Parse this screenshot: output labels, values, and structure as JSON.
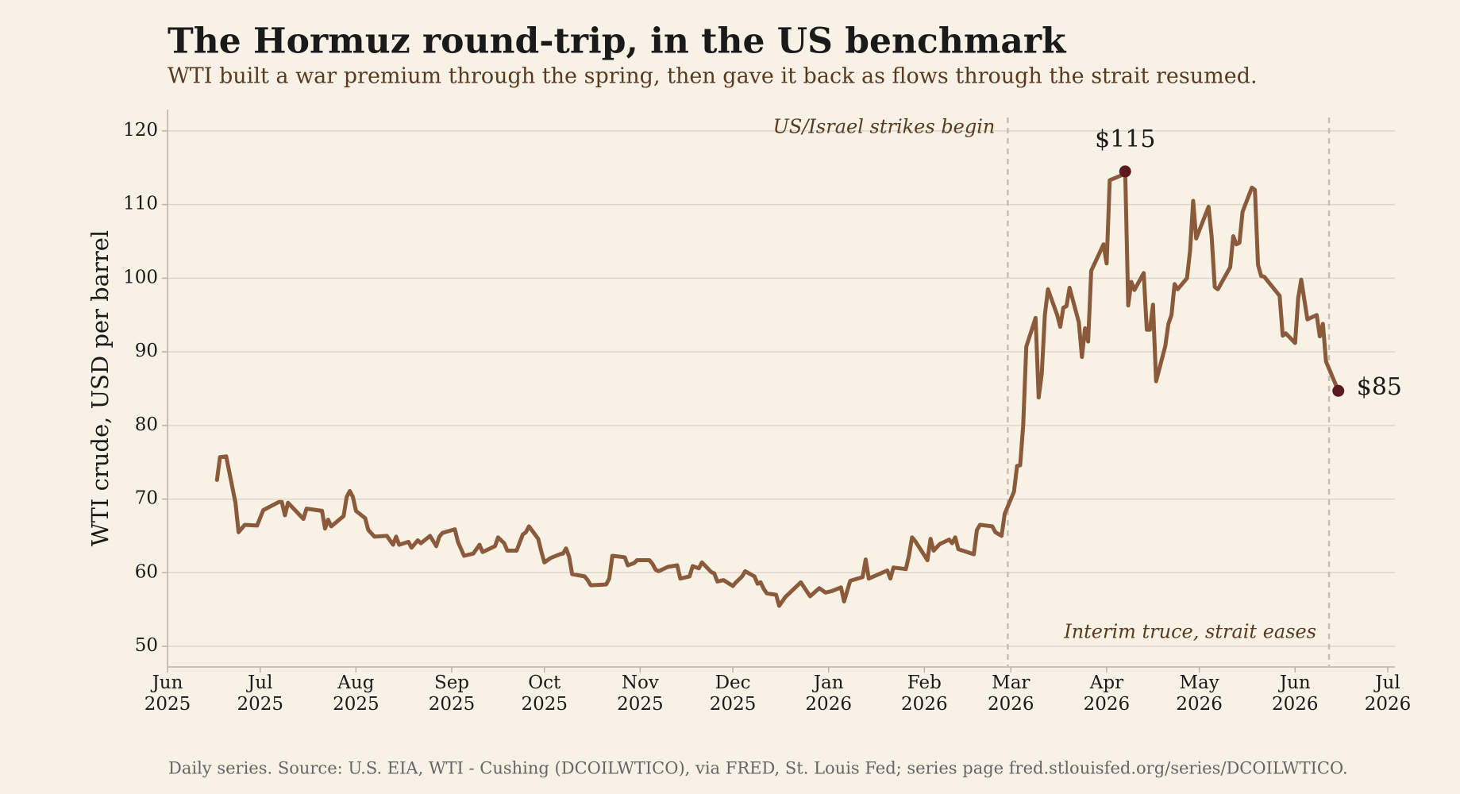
{
  "chart_data": {
    "type": "line",
    "title": "The Hormuz round-trip, in the US benchmark",
    "subtitle": "WTI built a war premium through the spring, then gave it back as flows through the strait resumed.",
    "ylabel": "WTI crude, USD per barrel",
    "footnote": "Daily series. Source: U.S. EIA, WTI - Cushing (DCOILWTICO), via FRED, St. Louis Fed; series page fred.stlouisfed.org/series/DCOILWTICO.",
    "color": "#8a5a3a",
    "grid": true,
    "xlim": [
      "2025-06-01",
      "2026-07-01"
    ],
    "xticks": [
      {
        "value": "2025-06-01",
        "label": "Jun 2025"
      },
      {
        "value": "2025-07-01",
        "label": "Jul 2025"
      },
      {
        "value": "2025-08-01",
        "label": "Aug 2025"
      },
      {
        "value": "2025-09-01",
        "label": "Sep 2025"
      },
      {
        "value": "2025-10-01",
        "label": "Oct 2025"
      },
      {
        "value": "2025-11-01",
        "label": "Nov 2025"
      },
      {
        "value": "2025-12-01",
        "label": "Dec 2025"
      },
      {
        "value": "2026-01-01",
        "label": "Jan 2026"
      },
      {
        "value": "2026-02-01",
        "label": "Feb 2026"
      },
      {
        "value": "2026-03-01",
        "label": "Mar 2026"
      },
      {
        "value": "2026-04-01",
        "label": "Apr 2026"
      },
      {
        "value": "2026-05-01",
        "label": "May 2026"
      },
      {
        "value": "2026-06-01",
        "label": "Jun 2026"
      },
      {
        "value": "2026-07-01",
        "label": "Jul 2026"
      }
    ],
    "ylim": [
      47.2,
      122.9
    ],
    "yticks": [
      50,
      60,
      70,
      80,
      90,
      100,
      110,
      120
    ],
    "x": [
      "2025-06-17",
      "2025-06-18",
      "2025-06-20",
      "2025-06-23",
      "2025-06-24",
      "2025-06-26",
      "2025-06-30",
      "2025-07-02",
      "2025-07-07",
      "2025-07-08",
      "2025-07-09",
      "2025-07-10",
      "2025-07-15",
      "2025-07-16",
      "2025-07-21",
      "2025-07-22",
      "2025-07-23",
      "2025-07-24",
      "2025-07-28",
      "2025-07-29",
      "2025-07-30",
      "2025-07-31",
      "2025-08-01",
      "2025-08-04",
      "2025-08-05",
      "2025-08-07",
      "2025-08-11",
      "2025-08-13",
      "2025-08-14",
      "2025-08-15",
      "2025-08-18",
      "2025-08-19",
      "2025-08-21",
      "2025-08-22",
      "2025-08-25",
      "2025-08-27",
      "2025-08-28",
      "2025-08-29",
      "2025-09-02",
      "2025-09-03",
      "2025-09-05",
      "2025-09-08",
      "2025-09-10",
      "2025-09-11",
      "2025-09-15",
      "2025-09-16",
      "2025-09-18",
      "2025-09-19",
      "2025-09-22",
      "2025-09-24",
      "2025-09-25",
      "2025-09-26",
      "2025-09-29",
      "2025-09-30",
      "2025-10-01",
      "2025-10-03",
      "2025-10-06",
      "2025-10-07",
      "2025-10-08",
      "2025-10-09",
      "2025-10-10",
      "2025-10-14",
      "2025-10-15",
      "2025-10-16",
      "2025-10-21",
      "2025-10-22",
      "2025-10-23",
      "2025-10-27",
      "2025-10-28",
      "2025-10-30",
      "2025-10-31",
      "2025-11-04",
      "2025-11-05",
      "2025-11-06",
      "2025-11-07",
      "2025-11-10",
      "2025-11-13",
      "2025-11-14",
      "2025-11-17",
      "2025-11-18",
      "2025-11-20",
      "2025-11-21",
      "2025-11-24",
      "2025-11-25",
      "2025-11-26",
      "2025-11-28",
      "2025-12-01",
      "2025-12-02",
      "2025-12-04",
      "2025-12-05",
      "2025-12-08",
      "2025-12-09",
      "2025-12-10",
      "2025-12-11",
      "2025-12-12",
      "2025-12-15",
      "2025-12-16",
      "2025-12-17",
      "2025-12-18",
      "2025-12-22",
      "2025-12-23",
      "2025-12-26",
      "2025-12-29",
      "2025-12-31",
      "2026-01-02",
      "2026-01-05",
      "2026-01-06",
      "2026-01-08",
      "2026-01-12",
      "2026-01-13",
      "2026-01-14",
      "2026-01-20",
      "2026-01-21",
      "2026-01-22",
      "2026-01-26",
      "2026-01-27",
      "2026-01-28",
      "2026-01-29",
      "2026-02-02",
      "2026-02-03",
      "2026-02-04",
      "2026-02-06",
      "2026-02-09",
      "2026-02-10",
      "2026-02-11",
      "2026-02-12",
      "2026-02-17",
      "2026-02-18",
      "2026-02-19",
      "2026-02-23",
      "2026-02-24",
      "2026-02-26",
      "2026-02-27",
      "2026-03-02",
      "2026-03-03",
      "2026-03-04",
      "2026-03-05",
      "2026-03-06",
      "2026-03-09",
      "2026-03-10",
      "2026-03-11",
      "2026-03-12",
      "2026-03-13",
      "2026-03-16",
      "2026-03-17",
      "2026-03-18",
      "2026-03-19",
      "2026-03-20",
      "2026-03-23",
      "2026-03-24",
      "2026-03-25",
      "2026-03-26",
      "2026-03-27",
      "2026-03-31",
      "2026-04-01",
      "2026-04-02",
      "2026-04-06",
      "2026-04-07",
      "2026-04-08",
      "2026-04-09",
      "2026-04-10",
      "2026-04-13",
      "2026-04-14",
      "2026-04-15",
      "2026-04-16",
      "2026-04-17",
      "2026-04-20",
      "2026-04-21",
      "2026-04-22",
      "2026-04-23",
      "2026-04-24",
      "2026-04-27",
      "2026-04-28",
      "2026-04-29",
      "2026-04-30",
      "2026-05-04",
      "2026-05-05",
      "2026-05-06",
      "2026-05-07",
      "2026-05-11",
      "2026-05-12",
      "2026-05-13",
      "2026-05-14",
      "2026-05-15",
      "2026-05-18",
      "2026-05-19",
      "2026-05-20",
      "2026-05-21",
      "2026-05-22",
      "2026-05-27",
      "2026-05-28",
      "2026-05-29",
      "2026-06-01",
      "2026-06-02",
      "2026-06-03",
      "2026-06-05",
      "2026-06-08",
      "2026-06-09",
      "2026-06-10",
      "2026-06-11",
      "2026-06-15"
    ],
    "values": [
      72.6,
      75.7,
      75.8,
      69.5,
      65.5,
      66.5,
      66.4,
      68.5,
      69.6,
      69.6,
      67.8,
      69.5,
      67.3,
      68.7,
      68.4,
      66.0,
      67.2,
      66.3,
      67.7,
      70.3,
      71.1,
      70.3,
      68.4,
      67.4,
      65.8,
      64.9,
      65.0,
      63.8,
      64.9,
      63.8,
      64.2,
      63.4,
      64.4,
      64.0,
      65.0,
      63.6,
      64.9,
      65.4,
      65.9,
      64.2,
      62.3,
      62.6,
      63.8,
      62.8,
      63.6,
      64.8,
      64.0,
      63.0,
      63.0,
      65.2,
      65.5,
      66.3,
      64.6,
      62.9,
      61.4,
      62.0,
      62.5,
      62.6,
      63.3,
      62.2,
      59.8,
      59.5,
      59.0,
      58.3,
      58.4,
      59.2,
      62.3,
      62.1,
      61.0,
      61.3,
      61.7,
      61.7,
      61.2,
      60.4,
      60.2,
      60.8,
      61.0,
      59.2,
      59.5,
      60.9,
      60.6,
      61.4,
      60.1,
      59.9,
      58.8,
      59.0,
      58.2,
      58.7,
      59.5,
      60.2,
      59.5,
      58.5,
      58.7,
      57.8,
      57.2,
      57.0,
      55.5,
      56.1,
      56.7,
      58.3,
      58.7,
      56.8,
      57.9,
      57.3,
      57.5,
      58.0,
      56.1,
      58.9,
      59.4,
      61.8,
      59.2,
      60.3,
      59.2,
      60.7,
      60.5,
      62.3,
      64.8,
      64.3,
      61.7,
      64.6,
      63.0,
      63.9,
      64.5,
      64.0,
      64.8,
      63.2,
      62.5,
      65.8,
      66.5,
      66.3,
      65.5,
      65.0,
      68.0,
      71.0,
      74.5,
      74.6,
      80.0,
      90.7,
      94.6,
      83.8,
      87.0,
      95.0,
      98.5,
      95.0,
      93.4,
      96.0,
      96.2,
      98.7,
      94.0,
      89.3,
      93.2,
      91.4,
      101.0,
      104.6,
      102.0,
      113.3,
      114.0,
      114.5,
      96.3,
      99.5,
      98.4,
      100.7,
      93.0,
      93.0,
      96.4,
      86.0,
      90.8,
      93.8,
      95.0,
      99.2,
      98.5,
      100.0,
      103.7,
      110.5,
      105.4,
      109.7,
      105.6,
      98.8,
      98.5,
      101.5,
      105.7,
      104.6,
      104.8,
      109.0,
      112.3,
      112.0,
      101.8,
      100.3,
      100.2,
      97.6,
      92.2,
      92.5,
      91.2,
      97.3,
      99.8,
      94.4,
      95.0,
      92.1,
      93.8,
      88.7,
      84.7
    ],
    "highlights": {
      "x": [
        "2026-04-07",
        "2026-06-15"
      ],
      "values": [
        114.5,
        84.7
      ],
      "value_labels": [
        "$115",
        "$85"
      ],
      "color": "#5c1a1f"
    },
    "annotations": [
      {
        "x": "2026-02-28",
        "text": "US/Israel strikes begin"
      },
      {
        "x": "2026-06-12",
        "text": "Interim truce, strait eases"
      }
    ]
  }
}
